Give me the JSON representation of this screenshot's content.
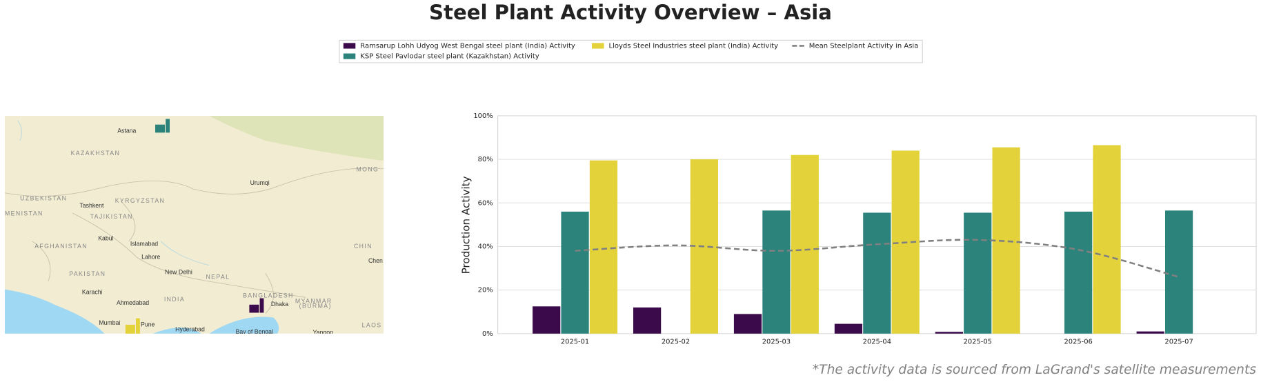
{
  "chart_data": {
    "type": "bar",
    "title": "Steel Plant Activity Overview – Asia",
    "ylabel": "Production Activity",
    "footnote": "*The activity data is sourced from LaGrand's satellite measurements",
    "categories": [
      "2025-01",
      "2025-02",
      "2025-03",
      "2025-04",
      "2025-05",
      "2025-06",
      "2025-07"
    ],
    "series": [
      {
        "name": "Ramsarup Lohh Udyog West Bengal steel plant (India) Activity",
        "color": "#3b0a4a",
        "values": [
          12.5,
          12,
          9,
          4.5,
          0.8,
          null,
          1
        ]
      },
      {
        "name": "KSP Steel Pavlodar steel plant (Kazakhstan) Activity",
        "color": "#2b837c",
        "values": [
          56,
          null,
          56.5,
          55.5,
          55.5,
          56,
          56.5
        ]
      },
      {
        "name": "Lloyds Steel Industries steel plant (India) Activity",
        "color": "#e3d23a",
        "values": [
          79.5,
          80,
          82,
          84,
          85.5,
          86.5,
          null
        ]
      },
      {
        "name": "Mean Steelplant Activity in Asia",
        "color": "#808080",
        "type": "line",
        "style": "dashed",
        "values": [
          38,
          40.5,
          38,
          41,
          43,
          38.5,
          26
        ]
      }
    ],
    "ylim": [
      0,
      100
    ],
    "yticks": [
      {
        "value": 0,
        "label": "0%"
      },
      {
        "value": 20,
        "label": "20%"
      },
      {
        "value": 40,
        "label": "40%"
      },
      {
        "value": 60,
        "label": "60%"
      },
      {
        "value": 80,
        "label": "80%"
      },
      {
        "value": 100,
        "label": "100%"
      }
    ],
    "grid": true,
    "legend": "top"
  },
  "map": {
    "labels": [
      "Astana",
      "KAZAKHSTAN",
      "UZBEKISTAN",
      "KYRGYZSTAN",
      "Tashkent",
      "TAJIKISTAN",
      "MENISTAN",
      "Urumqi",
      "MONG",
      "AFGHANISTAN",
      "Kabul",
      "Islamabad",
      "Lahore",
      "PAKISTAN",
      "New Delhi",
      "NEPAL",
      "CHIN",
      "Chen",
      "Karachi",
      "Ahmedabad",
      "INDIA",
      "BANGLADESH",
      "Dhaka",
      "MYANMAR",
      "(BURMA)",
      "Mumbai",
      "Pune",
      "Hyderabad",
      "Bay of Bengal",
      "Yangon",
      "LAOS"
    ]
  }
}
